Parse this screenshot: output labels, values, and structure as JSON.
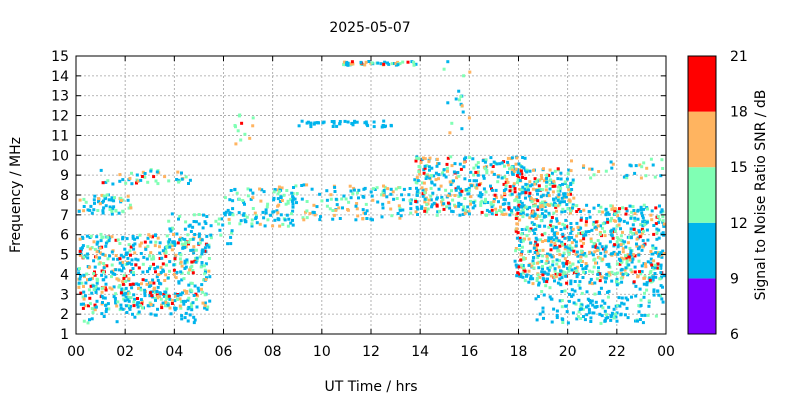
{
  "chart_data": {
    "type": "heatmap",
    "title": "2025-05-07",
    "xlabel": "UT Time / hrs",
    "ylabel": "Frequency / MHz",
    "xlim": [
      0,
      24
    ],
    "ylim": [
      1,
      15
    ],
    "x_ticks": [
      "00",
      "02",
      "04",
      "06",
      "08",
      "10",
      "12",
      "14",
      "16",
      "18",
      "20",
      "22",
      "00"
    ],
    "y_ticks": [
      "1",
      "2",
      "3",
      "4",
      "5",
      "6",
      "7",
      "8",
      "9",
      "10",
      "11",
      "12",
      "13",
      "14",
      "15"
    ],
    "grid": true,
    "colorbar": {
      "label": "Signal to Noise Ratio SNR / dB",
      "ticks": [
        "6",
        "9",
        "12",
        "15",
        "18",
        "21"
      ],
      "bands": [
        {
          "min": 6,
          "max": 9,
          "color": "#7f00ff"
        },
        {
          "min": 9,
          "max": 12,
          "color": "#00b4ec"
        },
        {
          "min": 12,
          "max": 15,
          "color": "#80ffb4"
        },
        {
          "min": 15,
          "max": 18,
          "color": "#ffb460"
        },
        {
          "min": 18,
          "max": 21,
          "color": "#ff0000"
        }
      ]
    },
    "clusters": [
      {
        "t": [
          0.0,
          5.4
        ],
        "f": [
          2.3,
          6.1
        ],
        "n": 560,
        "snr": [
          9,
          20
        ]
      },
      {
        "t": [
          0.0,
          2.2
        ],
        "f": [
          7.1,
          8.1
        ],
        "n": 60,
        "snr": [
          9,
          18
        ]
      },
      {
        "t": [
          0.8,
          4.6
        ],
        "f": [
          8.6,
          9.4
        ],
        "n": 45,
        "snr": [
          9,
          19
        ]
      },
      {
        "t": [
          0.2,
          4.8
        ],
        "f": [
          1.6,
          3.2
        ],
        "n": 60,
        "snr": [
          9,
          13
        ]
      },
      {
        "t": [
          3.6,
          6.3
        ],
        "f": [
          5.6,
          7.2
        ],
        "n": 60,
        "snr": [
          9,
          14
        ]
      },
      {
        "t": [
          6.0,
          8.8
        ],
        "f": [
          6.4,
          8.4
        ],
        "n": 90,
        "snr": [
          9,
          16
        ]
      },
      {
        "t": [
          8.0,
          13.6
        ],
        "f": [
          6.8,
          8.6
        ],
        "n": 150,
        "snr": [
          9,
          18
        ]
      },
      {
        "t": [
          6.4,
          7.2
        ],
        "f": [
          10.6,
          12.3
        ],
        "n": 12,
        "snr": [
          12,
          19
        ]
      },
      {
        "t": [
          9.0,
          12.8
        ],
        "f": [
          11.5,
          11.8
        ],
        "n": 45,
        "snr": [
          9,
          12
        ]
      },
      {
        "t": [
          10.8,
          13.9
        ],
        "f": [
          14.6,
          14.8
        ],
        "n": 45,
        "snr": [
          9,
          19
        ]
      },
      {
        "t": [
          13.7,
          18.3
        ],
        "f": [
          7.0,
          10.0
        ],
        "n": 380,
        "snr": [
          9,
          20
        ]
      },
      {
        "t": [
          17.8,
          20.2
        ],
        "f": [
          7.5,
          9.4
        ],
        "n": 160,
        "snr": [
          9,
          20
        ]
      },
      {
        "t": [
          17.8,
          24.0
        ],
        "f": [
          3.6,
          7.6
        ],
        "n": 820,
        "snr": [
          9,
          20
        ]
      },
      {
        "t": [
          18.6,
          24.0
        ],
        "f": [
          1.6,
          3.6
        ],
        "n": 170,
        "snr": [
          9,
          13
        ]
      },
      {
        "t": [
          20.0,
          24.0
        ],
        "f": [
          8.8,
          9.9
        ],
        "n": 35,
        "snr": [
          9,
          18
        ]
      },
      {
        "t": [
          14.6,
          16.0
        ],
        "f": [
          11.0,
          14.9
        ],
        "n": 18,
        "snr": [
          9,
          18
        ]
      }
    ]
  }
}
